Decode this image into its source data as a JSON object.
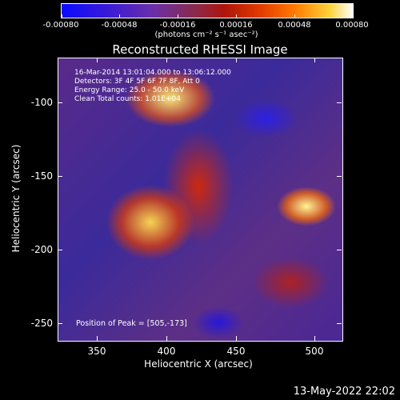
{
  "colorbar": {
    "labels": [
      "-0.00080",
      "-0.00048",
      "-0.00016",
      "0.00016",
      "0.00048",
      "0.00080"
    ],
    "units": "(photons cm⁻² s⁻¹ asec⁻²)"
  },
  "title": "Reconstructed RHESSI Image",
  "annotation": {
    "time_range": "16-Mar-2014 13:01:04.000 to 13:06:12.000",
    "detectors": "Detectors: 3F 4F 5F 6F 7F 8F, Att 0",
    "energy": "Energy Range: 25.0 - 50.0 keV",
    "algorithm": "Clean     Total counts: 1.01E+04",
    "peak": "Position of Peak = [505,-173]"
  },
  "axes": {
    "xlabel": "Heliocentric X (arcsec)",
    "ylabel": "Heliocentric Y (arcsec)",
    "xticks": [
      "350",
      "400",
      "450",
      "500"
    ],
    "yticks": [
      "-100",
      "-150",
      "-200",
      "-250"
    ]
  },
  "datestamp": "13-May-2022 22:02"
}
